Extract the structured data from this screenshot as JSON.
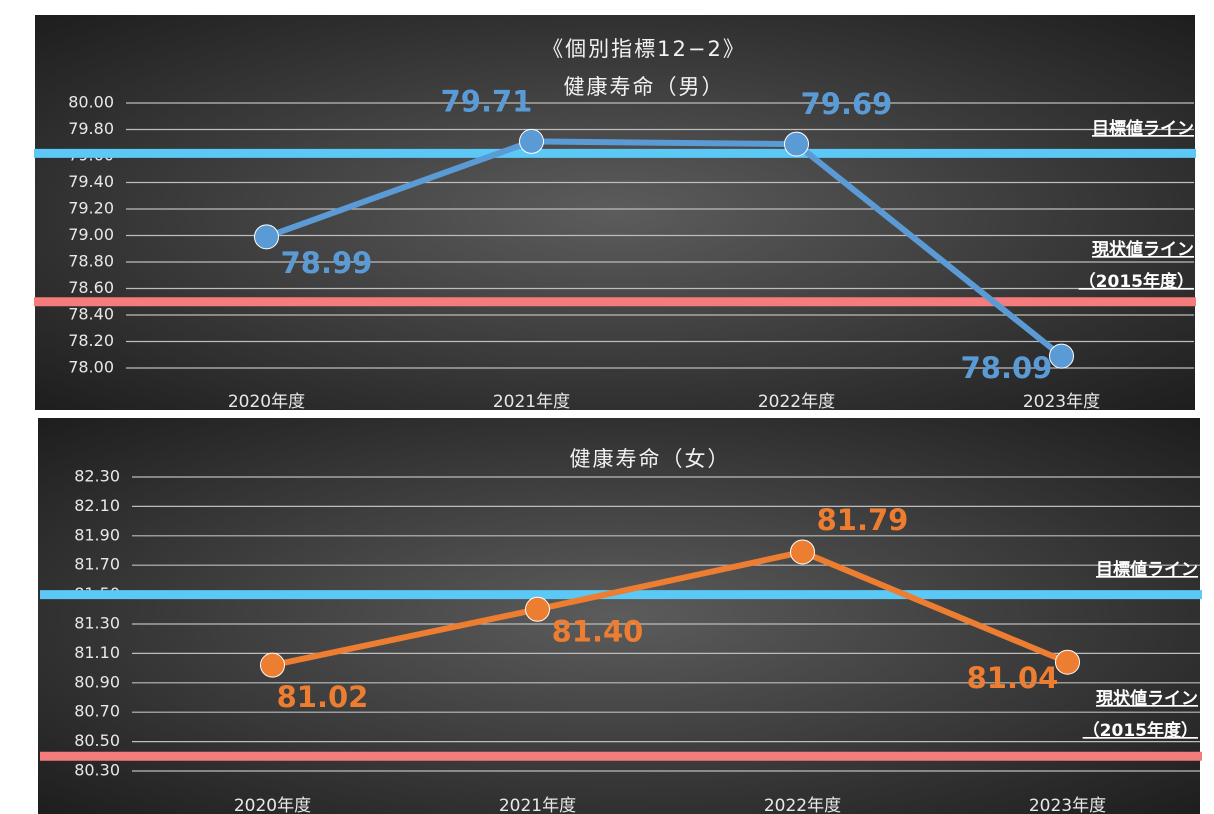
{
  "chart_data": [
    {
      "type": "line",
      "title": [
        "《個別指標12−2》",
        "健康寿命（男）"
      ],
      "categories": [
        "2020年度",
        "2021年度",
        "2022年度",
        "2023年度"
      ],
      "series": [
        {
          "name": "健康寿命（男）",
          "color": "#5b9bd5",
          "values": [
            78.99,
            79.71,
            79.69,
            78.09
          ]
        }
      ],
      "ylim": [
        78.0,
        80.0
      ],
      "yticks": [
        {
          "value": 78.0,
          "label": "78.00"
        },
        {
          "value": 78.2,
          "label": "78.20"
        },
        {
          "value": 78.4,
          "label": "78.40"
        },
        {
          "value": 78.6,
          "label": "78.60"
        },
        {
          "value": 78.8,
          "label": "78.80"
        },
        {
          "value": 79.0,
          "label": "79.00"
        },
        {
          "value": 79.2,
          "label": "79.20"
        },
        {
          "value": 79.4,
          "label": "79.40"
        },
        {
          "value": 79.6,
          "label": "79.60"
        },
        {
          "value": 79.8,
          "label": "79.80"
        },
        {
          "value": 80.0,
          "label": "80.00"
        }
      ],
      "grid": true,
      "reference_lines": [
        {
          "label": [
            "目標値ライン"
          ],
          "value": 79.62,
          "color": "#5bc8f5"
        },
        {
          "label": [
            "現状値ライン",
            "（2015年度）"
          ],
          "value": 78.5,
          "color": "#f47c7c"
        }
      ]
    },
    {
      "type": "line",
      "title": [
        "健康寿命（女）"
      ],
      "categories": [
        "2020年度",
        "2021年度",
        "2022年度",
        "2023年度"
      ],
      "series": [
        {
          "name": "健康寿命（女）",
          "color": "#ed7d31",
          "values": [
            81.02,
            81.4,
            81.79,
            81.04
          ],
          "value_labels": [
            "81.02",
            "81.40",
            "81.79",
            "81.04"
          ]
        }
      ],
      "ylim": [
        80.3,
        82.3
      ],
      "yticks": [
        {
          "value": 80.3,
          "label": "80.30"
        },
        {
          "value": 80.5,
          "label": "80.50"
        },
        {
          "value": 80.7,
          "label": "80.70"
        },
        {
          "value": 80.9,
          "label": "80.90"
        },
        {
          "value": 81.1,
          "label": "81.10"
        },
        {
          "value": 81.3,
          "label": "81.30"
        },
        {
          "value": 81.5,
          "label": "81.50"
        },
        {
          "value": 81.7,
          "label": "81.70"
        },
        {
          "value": 81.9,
          "label": "81.90"
        },
        {
          "value": 82.1,
          "label": "82.10"
        },
        {
          "value": 82.3,
          "label": "82.30"
        }
      ],
      "grid": true,
      "reference_lines": [
        {
          "label": [
            "目標値ライン"
          ],
          "value": 81.5,
          "color": "#5bc8f5"
        },
        {
          "label": [
            "現状値ライン",
            "（2015年度）"
          ],
          "value": 80.4,
          "color": "#f47c7c"
        }
      ]
    }
  ]
}
